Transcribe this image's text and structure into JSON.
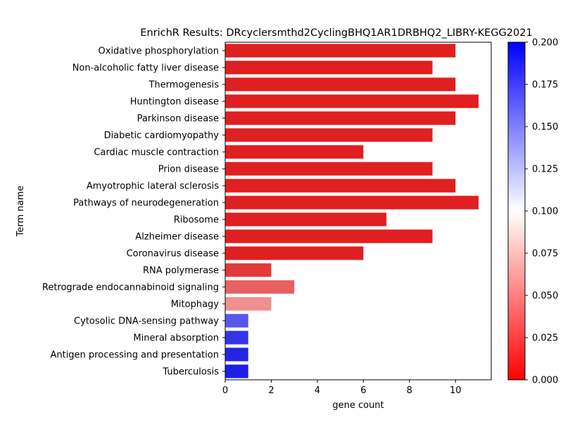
{
  "chart_data": {
    "type": "bar",
    "orientation": "horizontal",
    "title": "EnrichR Results: DRcyclersmthd2CyclingBHQ1AR1DRBHQ2_LIBRY-KEGG2021",
    "xlabel": "gene count",
    "ylabel": "Term name",
    "xlim": [
      0,
      11.55
    ],
    "xticks": [
      0,
      2,
      4,
      6,
      8,
      10
    ],
    "grid": false,
    "categories": [
      "Oxidative phosphorylation",
      "Non-alcoholic fatty liver disease",
      "Thermogenesis",
      "Huntington disease",
      "Parkinson disease",
      "Diabetic cardiomyopathy",
      "Cardiac muscle contraction",
      "Prion disease",
      "Amyotrophic lateral sclerosis",
      "Pathways of neurodegeneration",
      "Ribosome",
      "Alzheimer disease",
      "Coronavirus disease",
      "RNA polymerase",
      "Retrograde endocannabinoid signaling",
      "Mitophagy",
      "Cytosolic DNA-sensing pathway",
      "Mineral absorption",
      "Antigen processing and presentation",
      "Tuberculosis"
    ],
    "values": [
      10,
      9,
      10,
      11,
      10,
      9,
      6,
      9,
      10,
      11,
      7,
      9,
      6,
      2,
      3,
      2,
      1,
      1,
      1,
      1
    ],
    "colors": [
      "#e01f20",
      "#e01f20",
      "#e01f20",
      "#e01f20",
      "#e01f20",
      "#e01f20",
      "#e01f20",
      "#e01f20",
      "#e01f20",
      "#e01f20",
      "#e01f20",
      "#e01f20",
      "#e01f20",
      "#e03a3a",
      "#e86060",
      "#f09090",
      "#5757ee",
      "#3434e8",
      "#2424e6",
      "#1e1ee4"
    ],
    "colorbar": {
      "range": [
        0,
        0.2
      ],
      "ticks": [
        "0.000",
        "0.025",
        "0.050",
        "0.075",
        "0.100",
        "0.125",
        "0.150",
        "0.175",
        "0.200"
      ],
      "colormap": [
        "#ff0000",
        "#ffffff",
        "#0000ff"
      ]
    }
  }
}
